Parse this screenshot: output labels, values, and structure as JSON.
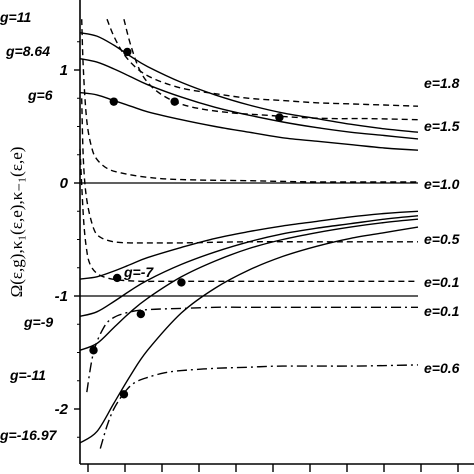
{
  "chart_data": {
    "type": "line",
    "ylabel": "Ω(ε,g),κ₁(ε,e),κ₋₁(ε,e)",
    "xlim": [
      0,
      1
    ],
    "ylim": [
      -2.35,
      1.45
    ],
    "yticks": [
      {
        "value": 1,
        "label": "1"
      },
      {
        "value": 0,
        "label": "0"
      },
      {
        "value": -1,
        "label": "-1"
      },
      {
        "value": -2,
        "label": "-2"
      }
    ],
    "x_tick_count": 10,
    "grid": false,
    "solid_series_labels": [
      "g=11",
      "g=8.64",
      "g=6",
      "g=-7",
      "g=-9",
      "g=-11",
      "g=-16.97"
    ],
    "dashed_series_labels": [
      "e=1.8",
      "e=1.5",
      "e=1.0",
      "e=0.5",
      "e=0.1"
    ],
    "dashdot_series_labels": [
      "e=0.1",
      "e=0.6"
    ],
    "series": [
      {
        "name": "g=11",
        "style": "solid",
        "x": [
          0.0,
          0.05,
          0.1,
          0.15,
          0.2,
          0.3,
          0.4,
          0.5,
          0.6,
          0.7,
          0.8,
          0.9,
          1.0
        ],
        "values": [
          1.33,
          1.3,
          1.22,
          1.12,
          1.03,
          0.89,
          0.78,
          0.69,
          0.62,
          0.57,
          0.52,
          0.48,
          0.45
        ]
      },
      {
        "name": "g=8.64",
        "style": "solid",
        "x": [
          0.0,
          0.05,
          0.1,
          0.15,
          0.2,
          0.3,
          0.4,
          0.5,
          0.6,
          0.7,
          0.8,
          0.9,
          1.0
        ],
        "values": [
          1.1,
          1.07,
          1.01,
          0.94,
          0.87,
          0.76,
          0.67,
          0.6,
          0.54,
          0.49,
          0.45,
          0.42,
          0.39
        ]
      },
      {
        "name": "g=6",
        "style": "solid",
        "x": [
          0.0,
          0.05,
          0.1,
          0.15,
          0.2,
          0.3,
          0.4,
          0.5,
          0.6,
          0.7,
          0.8,
          0.9,
          1.0
        ],
        "values": [
          0.8,
          0.78,
          0.73,
          0.68,
          0.63,
          0.56,
          0.5,
          0.45,
          0.4,
          0.37,
          0.34,
          0.31,
          0.29
        ]
      },
      {
        "name": "g=-7",
        "style": "solid",
        "x": [
          0.0,
          0.05,
          0.1,
          0.15,
          0.2,
          0.3,
          0.4,
          0.5,
          0.6,
          0.7,
          0.8,
          0.9,
          1.0
        ],
        "values": [
          -0.85,
          -0.83,
          -0.78,
          -0.72,
          -0.66,
          -0.57,
          -0.49,
          -0.43,
          -0.38,
          -0.34,
          -0.3,
          -0.27,
          -0.25
        ]
      },
      {
        "name": "g=-9",
        "style": "solid",
        "x": [
          0.0,
          0.05,
          0.1,
          0.15,
          0.2,
          0.3,
          0.4,
          0.5,
          0.6,
          0.7,
          0.8,
          0.9,
          1.0
        ],
        "values": [
          -1.18,
          -1.14,
          -1.05,
          -0.95,
          -0.86,
          -0.72,
          -0.61,
          -0.52,
          -0.45,
          -0.4,
          -0.36,
          -0.32,
          -0.29
        ]
      },
      {
        "name": "g=-11",
        "style": "solid",
        "x": [
          0.0,
          0.05,
          0.1,
          0.15,
          0.2,
          0.3,
          0.4,
          0.5,
          0.6,
          0.7,
          0.8,
          0.9,
          1.0
        ],
        "values": [
          -1.48,
          -1.42,
          -1.28,
          -1.14,
          -1.02,
          -0.83,
          -0.69,
          -0.58,
          -0.5,
          -0.44,
          -0.39,
          -0.35,
          -0.32
        ]
      },
      {
        "name": "g=-16.97",
        "style": "solid",
        "x": [
          0.0,
          0.05,
          0.1,
          0.15,
          0.2,
          0.3,
          0.4,
          0.5,
          0.6,
          0.7,
          0.8,
          0.9,
          1.0
        ],
        "values": [
          -2.3,
          -2.2,
          -1.95,
          -1.7,
          -1.48,
          -1.15,
          -0.93,
          -0.77,
          -0.65,
          -0.56,
          -0.49,
          -0.44,
          -0.39
        ]
      },
      {
        "name": "e=1.8",
        "style": "dashed",
        "x": [
          0.08,
          0.1,
          0.13,
          0.17,
          0.22,
          0.3,
          0.4,
          0.5,
          0.6,
          0.7,
          0.8,
          0.9,
          1.0
        ],
        "values": [
          1.45,
          1.3,
          1.14,
          1.01,
          0.92,
          0.84,
          0.79,
          0.75,
          0.73,
          0.71,
          0.7,
          0.69,
          0.68
        ]
      },
      {
        "name": "e=1.5",
        "style": "dashed",
        "x": [
          0.13,
          0.15,
          0.18,
          0.22,
          0.28,
          0.35,
          0.45,
          0.55,
          0.65,
          0.75,
          0.85,
          1.0
        ],
        "values": [
          1.45,
          1.22,
          0.98,
          0.83,
          0.72,
          0.66,
          0.62,
          0.6,
          0.58,
          0.57,
          0.57,
          0.56
        ]
      },
      {
        "name": "e=1.0",
        "style": "dashed",
        "x": [
          0.005,
          0.01,
          0.02,
          0.035,
          0.05,
          0.08,
          0.12,
          0.2,
          0.3,
          0.5,
          0.7,
          1.0
        ],
        "values": [
          1.45,
          1.0,
          0.55,
          0.31,
          0.21,
          0.13,
          0.09,
          0.05,
          0.03,
          0.02,
          0.01,
          0.01
        ]
      },
      {
        "name": "e=0.5",
        "style": "dashed",
        "x": [
          0.005,
          0.01,
          0.02,
          0.04,
          0.06,
          0.1,
          0.15,
          0.2,
          0.3,
          0.5,
          0.7,
          1.0
        ],
        "values": [
          0.75,
          0.2,
          -0.15,
          -0.4,
          -0.48,
          -0.52,
          -0.53,
          -0.53,
          -0.53,
          -0.52,
          -0.52,
          -0.52
        ]
      },
      {
        "name": "e=0.1",
        "style": "dashed",
        "x": [
          0.0,
          0.01,
          0.02,
          0.03,
          0.05,
          0.08,
          0.12,
          0.18,
          0.25,
          0.4,
          0.6,
          1.0
        ],
        "values": [
          0.3,
          -0.3,
          -0.6,
          -0.72,
          -0.8,
          -0.84,
          -0.86,
          -0.87,
          -0.87,
          -0.87,
          -0.87,
          -0.87
        ]
      },
      {
        "name": "e=0.1",
        "style": "dashdot",
        "x": [
          0.02,
          0.04,
          0.07,
          0.1,
          0.15,
          0.2,
          0.3,
          0.4,
          0.5,
          0.6,
          0.8,
          1.0
        ],
        "values": [
          -1.85,
          -1.5,
          -1.28,
          -1.19,
          -1.14,
          -1.12,
          -1.11,
          -1.1,
          -1.1,
          -1.1,
          -1.1,
          -1.1
        ]
      },
      {
        "name": "e=0.6",
        "style": "dashdot",
        "x": [
          0.06,
          0.08,
          0.1,
          0.13,
          0.16,
          0.2,
          0.25,
          0.3,
          0.4,
          0.5,
          0.6,
          0.8,
          1.0
        ],
        "values": [
          -2.35,
          -2.15,
          -2.0,
          -1.86,
          -1.77,
          -1.72,
          -1.68,
          -1.66,
          -1.64,
          -1.63,
          -1.62,
          -1.62,
          -1.61
        ]
      }
    ],
    "markers": [
      {
        "x": 0.14,
        "y": 1.16
      },
      {
        "x": 0.1,
        "y": 0.72
      },
      {
        "x": 0.28,
        "y": 0.72
      },
      {
        "x": 0.59,
        "y": 0.58
      },
      {
        "x": 0.11,
        "y": -0.84
      },
      {
        "x": 0.3,
        "y": -0.88
      },
      {
        "x": 0.18,
        "y": -1.16
      },
      {
        "x": 0.04,
        "y": -1.48
      },
      {
        "x": 0.13,
        "y": -1.87
      }
    ]
  }
}
